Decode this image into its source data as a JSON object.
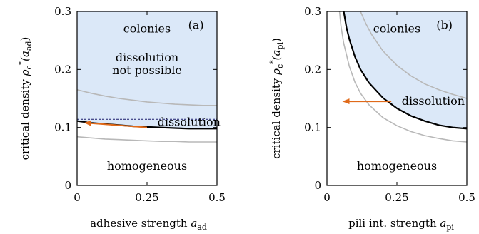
{
  "chart_data": [
    {
      "type": "line",
      "panel_label": "(a)",
      "xlabel": "adhesive strength",
      "xlabel_sym": "a",
      "xlabel_sub": "ad",
      "ylabel": "critical density",
      "ylabel_sym": "ρ",
      "ylabel_sup": "*",
      "ylabel_sub": "c",
      "ylabel_arg": "(a",
      "ylabel_arg_sub": "ad",
      "ylabel_close": ")",
      "xlim": [
        0,
        0.5
      ],
      "ylim": [
        0,
        0.3
      ],
      "x_ticks": [
        "0",
        "0.25",
        "0.5"
      ],
      "y_ticks": [
        "0",
        "0.1",
        "0.2",
        "0.3"
      ],
      "regions": {
        "colonies": "colonies",
        "dissolution_np_1": "dissolution",
        "dissolution_np_2": "not possible",
        "dissolution": "dissolution",
        "homogeneous": "homogeneous"
      },
      "shade_color": "#dbe8f8",
      "arrow_color": "#e06a1a",
      "arrow": {
        "from": [
          0.25,
          0.1
        ],
        "to": [
          0.03,
          0.108
        ]
      },
      "dashed_level": 0.114,
      "series": [
        {
          "role": "main",
          "color": "#000000",
          "x": [
            0,
            0.05,
            0.1,
            0.15,
            0.2,
            0.25,
            0.3,
            0.35,
            0.4,
            0.45,
            0.5
          ],
          "y": [
            0.111,
            0.108,
            0.106,
            0.104,
            0.102,
            0.101,
            0.1,
            0.099,
            0.098,
            0.098,
            0.098
          ]
        },
        {
          "role": "upper-grey",
          "color": "#b8b8b8",
          "x": [
            0,
            0.05,
            0.1,
            0.15,
            0.2,
            0.25,
            0.3,
            0.35,
            0.4,
            0.45,
            0.5
          ],
          "y": [
            0.165,
            0.159,
            0.154,
            0.15,
            0.147,
            0.144,
            0.142,
            0.14,
            0.139,
            0.138,
            0.138
          ]
        },
        {
          "role": "lower-grey",
          "color": "#b8b8b8",
          "x": [
            0,
            0.05,
            0.1,
            0.15,
            0.2,
            0.25,
            0.3,
            0.35,
            0.4,
            0.45,
            0.5
          ],
          "y": [
            0.084,
            0.082,
            0.08,
            0.079,
            0.078,
            0.077,
            0.076,
            0.076,
            0.075,
            0.075,
            0.075
          ]
        }
      ]
    },
    {
      "type": "line",
      "panel_label": "(b)",
      "xlabel": "pili int. strength",
      "xlabel_sym": "a",
      "xlabel_sub": "pi",
      "ylabel": "critical density",
      "ylabel_sym": "ρ",
      "ylabel_sup": "*",
      "ylabel_sub": "c",
      "ylabel_arg": "(a",
      "ylabel_arg_sub": "pi",
      "ylabel_close": ")",
      "xlim": [
        0,
        0.5
      ],
      "ylim": [
        0,
        0.3
      ],
      "x_ticks": [
        "0",
        "0.25",
        "0.5"
      ],
      "y_ticks": [
        "0",
        "0.1",
        "0.2",
        "0.3"
      ],
      "regions": {
        "colonies": "colonies",
        "dissolution": "dissolution",
        "homogeneous": "homogeneous"
      },
      "shade_color": "#dbe8f8",
      "arrow_color": "#e06a1a",
      "arrow": {
        "from": [
          0.23,
          0.145
        ],
        "to": [
          0.06,
          0.145
        ]
      },
      "series": [
        {
          "role": "main",
          "color": "#000000",
          "x": [
            0.06,
            0.07,
            0.08,
            0.1,
            0.12,
            0.15,
            0.2,
            0.25,
            0.3,
            0.35,
            0.4,
            0.45,
            0.5
          ],
          "y": [
            0.3,
            0.272,
            0.252,
            0.222,
            0.2,
            0.177,
            0.151,
            0.133,
            0.12,
            0.111,
            0.104,
            0.1,
            0.098
          ]
        },
        {
          "role": "upper-grey",
          "color": "#b8b8b8",
          "x": [
            0.12,
            0.14,
            0.16,
            0.2,
            0.25,
            0.3,
            0.35,
            0.4,
            0.45,
            0.5
          ],
          "y": [
            0.3,
            0.278,
            0.26,
            0.232,
            0.207,
            0.189,
            0.175,
            0.165,
            0.157,
            0.15
          ]
        },
        {
          "role": "lower-grey",
          "color": "#b8b8b8",
          "x": [
            0.045,
            0.05,
            0.06,
            0.08,
            0.1,
            0.12,
            0.15,
            0.2,
            0.25,
            0.3,
            0.35,
            0.4,
            0.45,
            0.5
          ],
          "y": [
            0.3,
            0.275,
            0.245,
            0.205,
            0.178,
            0.159,
            0.139,
            0.117,
            0.103,
            0.093,
            0.086,
            0.081,
            0.077,
            0.075
          ]
        }
      ]
    }
  ]
}
